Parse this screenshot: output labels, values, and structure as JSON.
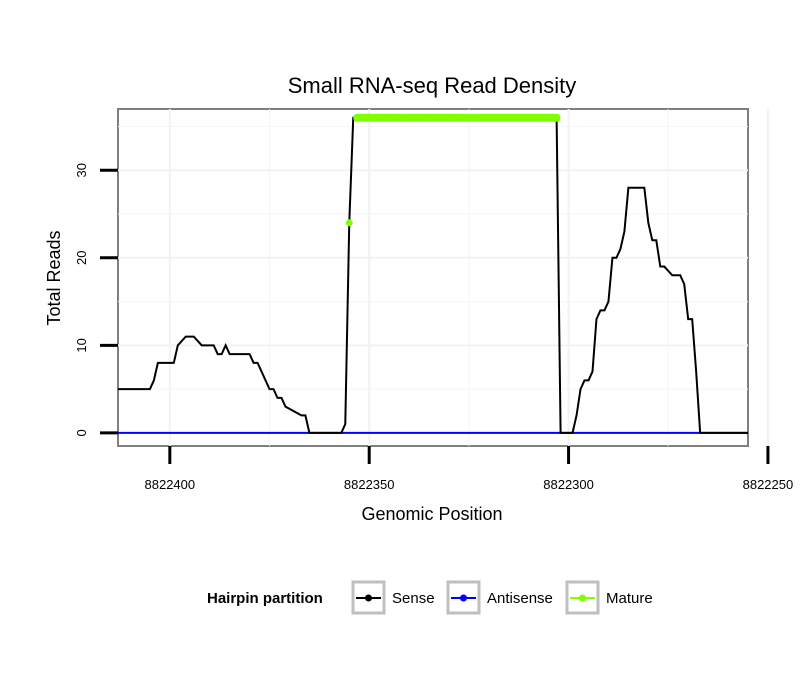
{
  "chart_data": {
    "type": "line",
    "title": "Small RNA-seq Read Density",
    "xlabel": "Genomic Position",
    "ylabel": "Total Reads",
    "xlim": [
      8822413,
      8822255
    ],
    "ylim": [
      -1.5,
      37
    ],
    "x_reversed": true,
    "grid": true,
    "x_ticks": [
      8822400,
      8822350,
      8822300,
      8822250
    ],
    "x_tick_labels": [
      "8822400",
      "8822350",
      "8822300",
      "8822250"
    ],
    "y_ticks": [
      0,
      10,
      20,
      30
    ],
    "y_tick_labels": [
      "0",
      "10",
      "20",
      "30"
    ],
    "legend": {
      "title": "Hairpin partition",
      "placement": "bottom",
      "entries": [
        "Sense",
        "Antisense",
        "Mature"
      ]
    },
    "series": [
      {
        "name": "Sense",
        "color": "#000000",
        "x": [
          8822413,
          8822405,
          8822404,
          8822403,
          8822399,
          8822398,
          8822396,
          8822394,
          8822392,
          8822389,
          8822388,
          8822387,
          8822386,
          8822385,
          8822380,
          8822379,
          8822378,
          8822377,
          8822376,
          8822375,
          8822374,
          8822373,
          8822372,
          8822371,
          8822367,
          8822366,
          8822365,
          8822359,
          8822358,
          8822357,
          8822356,
          8822355,
          8822354,
          8822303,
          8822302,
          8822301,
          8822300,
          8822299,
          8822298,
          8822297,
          8822296,
          8822295,
          8822294,
          8822293,
          8822292,
          8822291,
          8822290,
          8822289,
          8822288,
          8822287,
          8822286,
          8822285,
          8822281,
          8822280,
          8822279,
          8822278,
          8822277,
          8822276,
          8822274,
          8822273,
          8822272,
          8822271,
          8822270,
          8822269,
          8822268,
          8822267,
          8822263,
          8822255
        ],
        "y": [
          5,
          5,
          6,
          8,
          8,
          10,
          11,
          11,
          10,
          10,
          9,
          9,
          10,
          9,
          9,
          8,
          8,
          7,
          6,
          5,
          5,
          4,
          4,
          3,
          2,
          2,
          0,
          0,
          0,
          0,
          1,
          24,
          36,
          36,
          0,
          0,
          0,
          0,
          2,
          5,
          6,
          6,
          7,
          13,
          14,
          14,
          15,
          20,
          20,
          21,
          23,
          28,
          28,
          24,
          22,
          22,
          19,
          19,
          18,
          18,
          18,
          17,
          13,
          13,
          7,
          0,
          0,
          0
        ]
      },
      {
        "name": "Antisense",
        "color": "#0000ff",
        "x": [
          8822413,
          8822255
        ],
        "y": [
          0,
          0
        ]
      },
      {
        "name": "Mature",
        "color": "#7fff00",
        "x": [
          8822355,
          8822353,
          8822350,
          8822345,
          8822340,
          8822335,
          8822330,
          8822325,
          8822320,
          8822315,
          8822310,
          8822305,
          8822303
        ],
        "y": [
          24,
          36,
          36,
          36,
          36,
          36,
          36,
          36,
          36,
          36,
          36,
          36,
          36
        ]
      }
    ]
  }
}
